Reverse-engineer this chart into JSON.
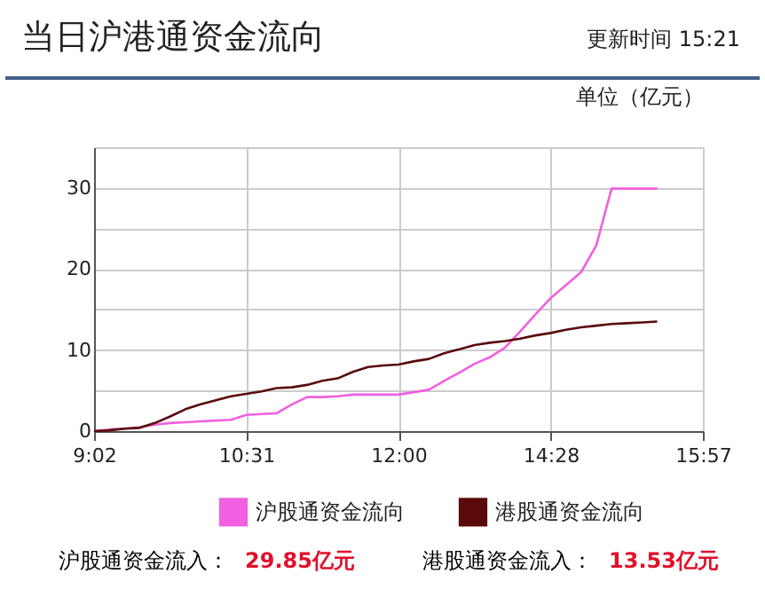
{
  "chart_data": {
    "type": "line",
    "title": "当日沪港通资金流向",
    "subtitle": "更新时间 15:21",
    "ylabel": "单位（亿元）",
    "categories": [
      "9:02",
      null,
      null,
      null,
      null,
      null,
      null,
      null,
      null,
      null,
      "10:31",
      null,
      null,
      null,
      null,
      null,
      null,
      null,
      null,
      null,
      "12:00",
      null,
      null,
      null,
      null,
      null,
      null,
      null,
      null,
      null,
      "14:28",
      null,
      null,
      null,
      null,
      null,
      null,
      null,
      null,
      null,
      "15:57"
    ],
    "ylim": [
      0,
      35
    ],
    "yticks": [
      0,
      {
        "value": 5,
        "label": null
      },
      10,
      {
        "value": 15,
        "label": null
      },
      20,
      {
        "value": 25,
        "label": null
      },
      30,
      {
        "value": 35,
        "label": null
      }
    ],
    "grid": true,
    "legend": "bottom",
    "marker": "none",
    "line_style": "solid",
    "series": [
      {
        "name": "沪股通资金流向",
        "color": "#f060e0",
        "values": [
          0,
          0.2,
          0.3,
          0.5,
          0.8,
          1.0,
          1.1,
          1.2,
          1.3,
          1.4,
          2.0,
          2.1,
          2.2,
          3.3,
          4.2,
          4.2,
          4.3,
          4.5,
          4.5,
          4.5,
          4.5,
          4.8,
          5.1,
          6.2,
          7.2,
          8.3,
          9.1,
          10.3,
          12.3,
          14.4,
          16.4,
          18.0,
          19.6,
          22.9,
          29.9,
          29.9,
          29.9,
          29.9,
          null,
          null,
          null
        ]
      },
      {
        "name": "港股通资金流向",
        "color": "#5a0a0a",
        "values": [
          0,
          0.1,
          0.3,
          0.4,
          1.0,
          1.8,
          2.7,
          3.3,
          3.8,
          4.3,
          4.6,
          4.9,
          5.3,
          5.4,
          5.7,
          6.2,
          6.5,
          7.3,
          7.9,
          8.1,
          8.2,
          8.6,
          8.9,
          9.6,
          10.1,
          10.6,
          10.9,
          11.1,
          11.4,
          11.8,
          12.1,
          12.5,
          12.8,
          13.0,
          13.2,
          13.3,
          13.4,
          13.5,
          null,
          null,
          null
        ]
      }
    ],
    "annotations": [
      "沪股通资金流入：",
      "29.85亿元",
      "港股通资金流入：",
      "13.53亿元"
    ]
  }
}
